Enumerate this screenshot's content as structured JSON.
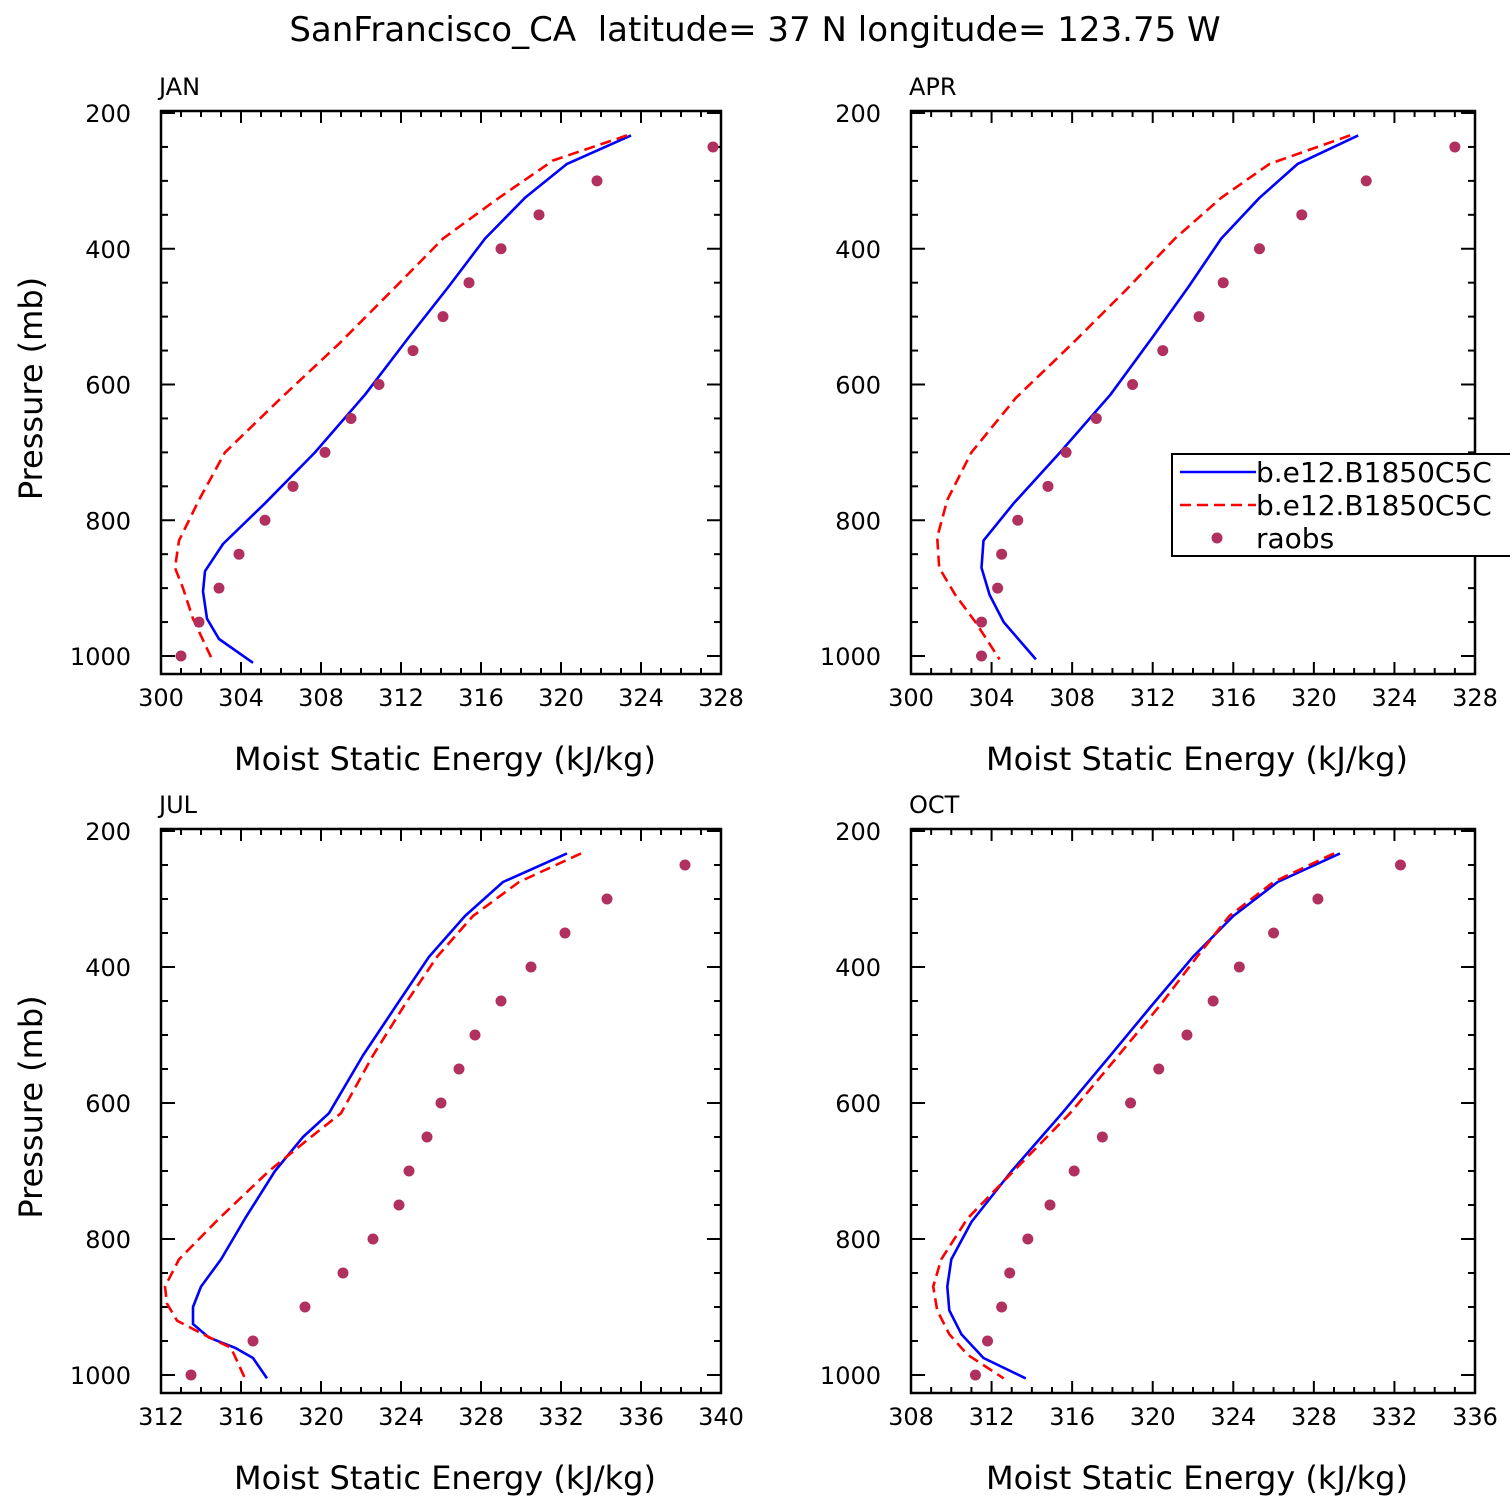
{
  "figure": {
    "title": "SanFrancisco_CA  latitude= 37 N longitude= 123.75 W"
  },
  "colors": {
    "model_solid": "#0000ff",
    "model_dashed": "#ff0000",
    "raobs": "#b03060"
  },
  "legend": {
    "placement": "right-middle of APR panel, clipped at figure edge",
    "entries": [
      {
        "label": "b.e12.B1850C5C",
        "style": "solid",
        "color": "#0000ff"
      },
      {
        "label": "b.e12.B1850C5C",
        "style": "dashed",
        "color": "#ff0000"
      },
      {
        "label": "raobs",
        "style": "marker",
        "color": "#b03060"
      }
    ]
  },
  "chart_data": [
    {
      "type": "line",
      "panel_label": "JAN",
      "xlabel": "Moist Static Energy (kJ/kg)",
      "ylabel": "Pressure (mb)",
      "xlim": [
        300,
        328
      ],
      "xticks": [
        300,
        304,
        308,
        312,
        316,
        320,
        324,
        328
      ],
      "ylim": [
        200,
        1000
      ],
      "yticks": [
        200,
        400,
        600,
        800,
        1000
      ],
      "y_inverted": true,
      "grid": false,
      "series": [
        {
          "style": "solid",
          "color": "#0000ff",
          "x": [
            323.5,
            320.3,
            318.2,
            316.2,
            314.4,
            312.4,
            310.2,
            307.7,
            305.2,
            303.1,
            302.2,
            302.1,
            302.3,
            302.9,
            304.6
          ],
          "y": [
            233,
            275,
            325,
            385,
            455,
            530,
            615,
            700,
            775,
            835,
            875,
            905,
            945,
            975,
            1010
          ]
        },
        {
          "style": "dashed",
          "color": "#ff0000",
          "x": [
            323.3,
            319.6,
            316.9,
            314.1,
            311.6,
            308.9,
            306.0,
            303.2,
            301.9,
            300.9,
            300.7,
            301.1,
            301.6,
            302.6
          ],
          "y": [
            233,
            270,
            325,
            385,
            460,
            540,
            620,
            700,
            770,
            830,
            870,
            900,
            945,
            1008
          ]
        },
        {
          "style": "marker",
          "name": "raobs",
          "color": "#b03060",
          "x": [
            327.6,
            321.8,
            318.9,
            317.0,
            315.4,
            314.1,
            312.6,
            310.9,
            309.5,
            308.2,
            306.6,
            305.2,
            303.9,
            302.9,
            301.9,
            301.0
          ],
          "y": [
            250,
            300,
            350,
            400,
            450,
            500,
            550,
            600,
            650,
            700,
            750,
            800,
            850,
            900,
            950,
            1000
          ]
        }
      ]
    },
    {
      "type": "line",
      "panel_label": "APR",
      "xlabel": "Moist Static Energy (kJ/kg)",
      "ylabel": "",
      "xlim": [
        300,
        328
      ],
      "xticks": [
        300,
        304,
        308,
        312,
        316,
        320,
        324,
        328
      ],
      "ylim": [
        200,
        1000
      ],
      "yticks": [
        200,
        400,
        600,
        800,
        1000
      ],
      "y_inverted": true,
      "grid": false,
      "series": [
        {
          "style": "solid",
          "color": "#0000ff",
          "x": [
            322.2,
            319.2,
            317.3,
            315.4,
            313.8,
            312.0,
            309.9,
            307.4,
            305.1,
            303.6,
            303.5,
            303.9,
            304.6,
            306.2
          ],
          "y": [
            233,
            275,
            325,
            385,
            455,
            530,
            615,
            700,
            775,
            830,
            870,
            910,
            950,
            1005
          ]
        },
        {
          "style": "dashed",
          "color": "#ff0000",
          "x": [
            321.8,
            317.8,
            315.4,
            313.1,
            310.7,
            308.0,
            305.2,
            303.0,
            301.8,
            301.3,
            301.4,
            302.2,
            303.2,
            304.4
          ],
          "y": [
            233,
            275,
            325,
            385,
            460,
            540,
            620,
            700,
            770,
            825,
            870,
            910,
            950,
            1005
          ]
        },
        {
          "style": "marker",
          "name": "raobs",
          "color": "#b03060",
          "x": [
            327.0,
            322.6,
            319.4,
            317.3,
            315.5,
            314.3,
            312.5,
            311.0,
            309.2,
            307.7,
            306.8,
            305.3,
            304.5,
            304.3,
            303.5,
            303.5
          ],
          "y": [
            250,
            300,
            350,
            400,
            450,
            500,
            550,
            600,
            650,
            700,
            750,
            800,
            850,
            900,
            950,
            1000
          ]
        }
      ]
    },
    {
      "type": "line",
      "panel_label": "JUL",
      "xlabel": "Moist Static Energy (kJ/kg)",
      "ylabel": "Pressure (mb)",
      "xlim": [
        312,
        340
      ],
      "xticks": [
        312,
        316,
        320,
        324,
        328,
        332,
        336,
        340
      ],
      "ylim": [
        200,
        1000
      ],
      "yticks": [
        200,
        400,
        600,
        800,
        1000
      ],
      "y_inverted": true,
      "grid": false,
      "series": [
        {
          "style": "solid",
          "color": "#0000ff",
          "x": [
            332.3,
            329.1,
            327.2,
            325.4,
            323.8,
            322.1,
            320.4,
            319.1,
            317.7,
            316.2,
            315.0,
            314.0,
            313.6,
            313.6,
            314.4,
            315.7,
            316.6,
            317.3
          ],
          "y": [
            233,
            275,
            325,
            385,
            455,
            530,
            615,
            650,
            700,
            770,
            830,
            870,
            900,
            925,
            945,
            960,
            975,
            1005
          ]
        },
        {
          "style": "dashed",
          "color": "#ff0000",
          "x": [
            333.0,
            329.9,
            327.6,
            325.8,
            324.2,
            322.6,
            321.0,
            319.5,
            317.4,
            314.9,
            312.9,
            312.2,
            312.3,
            312.8,
            314.1,
            315.5,
            316.2
          ],
          "y": [
            233,
            275,
            325,
            385,
            455,
            530,
            615,
            650,
            700,
            770,
            830,
            870,
            895,
            920,
            940,
            960,
            1005
          ]
        },
        {
          "style": "marker",
          "name": "raobs",
          "color": "#b03060",
          "x": [
            338.2,
            334.3,
            332.2,
            330.5,
            329.0,
            327.7,
            326.9,
            326.0,
            325.3,
            324.4,
            323.9,
            322.6,
            321.1,
            319.2,
            316.6,
            313.5
          ],
          "y": [
            250,
            300,
            350,
            400,
            450,
            500,
            550,
            600,
            650,
            700,
            750,
            800,
            850,
            900,
            950,
            1000
          ]
        }
      ]
    },
    {
      "type": "line",
      "panel_label": "OCT",
      "xlabel": "Moist Static Energy (kJ/kg)",
      "ylabel": "",
      "xlim": [
        308,
        336
      ],
      "xticks": [
        308,
        312,
        316,
        320,
        324,
        328,
        332,
        336
      ],
      "ylim": [
        200,
        1000
      ],
      "yticks": [
        200,
        400,
        600,
        800,
        1000
      ],
      "y_inverted": true,
      "grid": false,
      "series": [
        {
          "style": "solid",
          "color": "#0000ff",
          "x": [
            329.3,
            326.2,
            324.0,
            322.0,
            320.0,
            317.9,
            315.5,
            313.0,
            311.0,
            310.0,
            309.8,
            309.9,
            310.5,
            311.6,
            313.7
          ],
          "y": [
            233,
            275,
            325,
            385,
            455,
            530,
            615,
            700,
            775,
            830,
            870,
            905,
            940,
            975,
            1005
          ]
        },
        {
          "style": "dashed",
          "color": "#ff0000",
          "x": [
            329.0,
            326.0,
            323.8,
            322.2,
            320.4,
            318.3,
            315.9,
            313.1,
            310.8,
            309.5,
            309.1,
            309.3,
            309.9,
            310.8,
            312.6
          ],
          "y": [
            233,
            275,
            325,
            385,
            455,
            530,
            615,
            700,
            770,
            830,
            870,
            905,
            940,
            970,
            1005
          ]
        },
        {
          "style": "marker",
          "name": "raobs",
          "color": "#b03060",
          "x": [
            332.3,
            328.2,
            326.0,
            324.3,
            323.0,
            321.7,
            320.3,
            318.9,
            317.5,
            316.1,
            314.9,
            313.8,
            312.9,
            312.5,
            311.8,
            311.2
          ],
          "y": [
            250,
            300,
            350,
            400,
            450,
            500,
            550,
            600,
            650,
            700,
            750,
            800,
            850,
            900,
            950,
            1000
          ]
        }
      ]
    }
  ]
}
